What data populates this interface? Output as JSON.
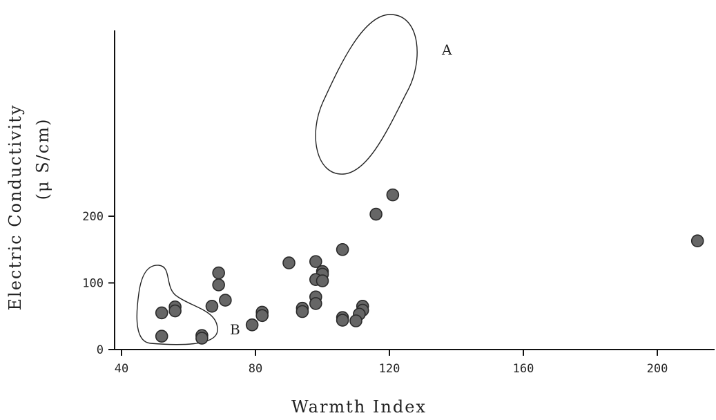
{
  "chart_data": {
    "type": "scatter",
    "title": "",
    "xlabel": "Warmth Index",
    "ylabel_line1": "Electric Conductivity",
    "ylabel_line2": "(μ S/cm)",
    "xlim": [
      38,
      220
    ],
    "ylim": [
      0,
      240
    ],
    "xticks": [
      40,
      80,
      120,
      160,
      200
    ],
    "yticks": [
      0,
      100,
      200
    ],
    "grid": false,
    "marker_color": "#666666",
    "series": [
      {
        "points": [
          {
            "x": 121,
            "y": 232
          },
          {
            "x": 116,
            "y": 203
          },
          {
            "x": 106,
            "y": 150
          },
          {
            "x": 212,
            "y": 163
          },
          {
            "x": 98,
            "y": 132
          },
          {
            "x": 90,
            "y": 130
          },
          {
            "x": 100,
            "y": 117
          },
          {
            "x": 100,
            "y": 113
          },
          {
            "x": 98,
            "y": 105
          },
          {
            "x": 100,
            "y": 103
          },
          {
            "x": 69,
            "y": 115
          },
          {
            "x": 69,
            "y": 97
          },
          {
            "x": 71,
            "y": 74
          },
          {
            "x": 67,
            "y": 65
          },
          {
            "x": 56,
            "y": 64
          },
          {
            "x": 56,
            "y": 58
          },
          {
            "x": 52,
            "y": 55
          },
          {
            "x": 52,
            "y": 20
          },
          {
            "x": 64,
            "y": 21
          },
          {
            "x": 64,
            "y": 17
          },
          {
            "x": 79,
            "y": 37
          },
          {
            "x": 82,
            "y": 56
          },
          {
            "x": 82,
            "y": 51
          },
          {
            "x": 94,
            "y": 62
          },
          {
            "x": 94,
            "y": 57
          },
          {
            "x": 98,
            "y": 79
          },
          {
            "x": 98,
            "y": 69
          },
          {
            "x": 106,
            "y": 48
          },
          {
            "x": 106,
            "y": 44
          },
          {
            "x": 112,
            "y": 65
          },
          {
            "x": 112,
            "y": 59
          },
          {
            "x": 111,
            "y": 53
          },
          {
            "x": 110,
            "y": 43
          }
        ]
      }
    ],
    "annotations": [
      {
        "text": "A"
      },
      {
        "text": "B"
      }
    ]
  }
}
